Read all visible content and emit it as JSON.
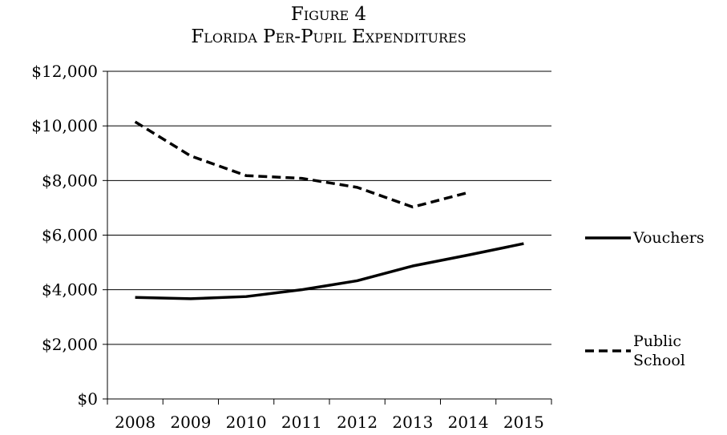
{
  "figure_label": "Figure 4",
  "figure_title": "Florida Per-Pupil Expenditures",
  "chart_data": {
    "type": "line",
    "title": "Florida Per-Pupil Expenditures",
    "xlabel": "",
    "ylabel": "",
    "categories": [
      "2008",
      "2009",
      "2010",
      "2011",
      "2012",
      "2013",
      "2014",
      "2015"
    ],
    "ylim": [
      0,
      12000
    ],
    "y_ticks": [
      0,
      2000,
      4000,
      6000,
      8000,
      10000,
      12000
    ],
    "y_tick_labels": [
      "$0",
      "$2,000",
      "$4,000",
      "$6,000",
      "$8,000",
      "$10,000",
      "$12,000"
    ],
    "grid": true,
    "legend_position": "right",
    "series": [
      {
        "name": "Vouchers",
        "style": "solid",
        "color": "#000000",
        "values": [
          3720,
          3670,
          3750,
          4000,
          4330,
          4870,
          5270,
          5690
        ]
      },
      {
        "name": "Public School",
        "name_lines": [
          "Public",
          "School"
        ],
        "style": "dashed",
        "color": "#000000",
        "values": [
          10150,
          8900,
          8180,
          8080,
          7750,
          7030,
          7560,
          null
        ]
      }
    ]
  }
}
